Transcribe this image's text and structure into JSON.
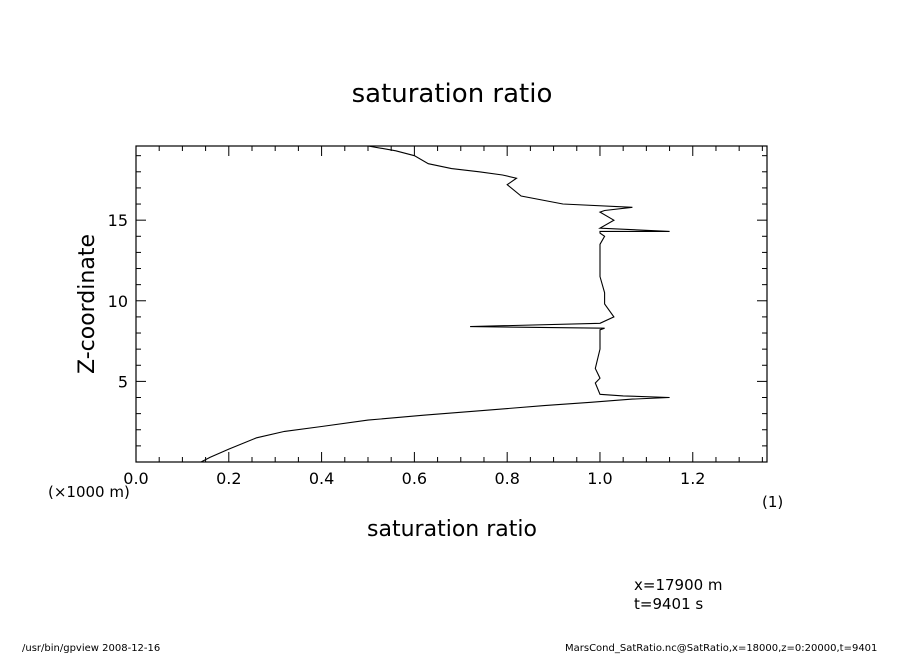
{
  "chart_data": {
    "type": "line",
    "title": "saturation ratio",
    "xlabel": "saturation ratio",
    "ylabel": "Z-coordinate",
    "x_unit": "(1)",
    "y_unit": "(×1000 m)",
    "xlim": [
      0.0,
      1.36
    ],
    "ylim": [
      0.0,
      19.6
    ],
    "x_ticks": [
      "0.0",
      "0.2",
      "0.4",
      "0.6",
      "0.8",
      "1.0",
      "1.2"
    ],
    "y_ticks": [
      "5",
      "10",
      "15"
    ],
    "grid": false,
    "series": [
      {
        "x": [
          0.14,
          0.16,
          0.2,
          0.26,
          0.32,
          0.4,
          0.5,
          0.62,
          0.75,
          0.88,
          0.98,
          1.07,
          1.15,
          1.05,
          1.0,
          0.99,
          1.0,
          0.99,
          1.0,
          1.0,
          1.01,
          0.72,
          1.0,
          1.03,
          1.01,
          1.01,
          1.0,
          1.0,
          1.0,
          1.01,
          1.0,
          1.0,
          1.15,
          1.0,
          1.03,
          1.0,
          1.01,
          1.07,
          0.92,
          0.83,
          0.8,
          0.82,
          0.79,
          0.74,
          0.68,
          0.63,
          0.6,
          0.56,
          0.5
        ],
        "y": [
          0.0,
          0.3,
          0.8,
          1.5,
          1.9,
          2.2,
          2.6,
          2.9,
          3.2,
          3.5,
          3.7,
          3.9,
          4.0,
          4.1,
          4.2,
          4.9,
          5.2,
          5.8,
          7.0,
          8.2,
          8.3,
          8.4,
          8.6,
          9.0,
          9.8,
          10.5,
          11.5,
          12.5,
          13.5,
          14.0,
          14.2,
          14.3,
          14.3,
          14.5,
          15.0,
          15.5,
          15.6,
          15.8,
          16.0,
          16.5,
          17.2,
          17.6,
          17.8,
          18.0,
          18.2,
          18.5,
          19.0,
          19.3,
          19.6
        ]
      }
    ]
  },
  "annotations": {
    "x_coord": "x=17900  m",
    "t_coord": "t=9401  s"
  },
  "footer": {
    "left": "/usr/bin/gpview   2008-12-16",
    "right": "MarsCond_SatRatio.nc@SatRatio,x=18000,z=0:20000,t=9401"
  }
}
